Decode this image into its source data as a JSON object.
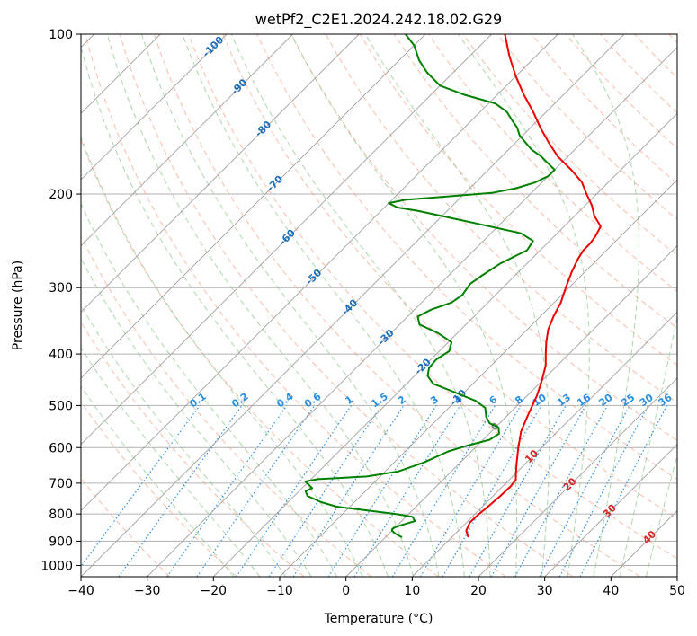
{
  "chart_data": {
    "type": "line",
    "title": "wetPf2_C2E1.2024.242.18.02.G29",
    "xlabel": "Temperature (°C)",
    "ylabel": "Pressure (hPa)",
    "xlim": [
      -40,
      50
    ],
    "ylim": [
      1050,
      100
    ],
    "y_scale": "log",
    "grid": true,
    "x_ticks": [
      -40,
      -30,
      -20,
      -10,
      0,
      10,
      20,
      30,
      40,
      50
    ],
    "y_ticks": [
      100,
      200,
      300,
      400,
      500,
      600,
      700,
      800,
      900,
      1000
    ],
    "colors": {
      "temperature": "#ee0000",
      "dewpoint": "#008000",
      "isotherm": "#a0a0a0",
      "dry_adiabat": "#f4a58c",
      "moist_adiabat": "#90c890",
      "mixing_ratio": "#2a8fe0",
      "isotherm_label": "#1f6fb8",
      "isotherm_label_warm": "#d62728",
      "isotherm_label_zero": "#808080"
    },
    "isotherm_labels": [
      "-100",
      "-90",
      "-80",
      "-70",
      "-60",
      "-50",
      "-40",
      "-30",
      "-20",
      "-10",
      "0",
      "10",
      "20",
      "30",
      "40"
    ],
    "mixing_ratio_labels": [
      "0.1",
      "0.2",
      "0.4",
      "0.6",
      "1",
      "1.5",
      "2",
      "3",
      "4",
      "6",
      "8",
      "10",
      "13",
      "16",
      "20",
      "25",
      "30",
      "36"
    ],
    "series": [
      {
        "key": "temperature",
        "points": [
          [
            885,
            12.5
          ],
          [
            860,
            11.2
          ],
          [
            830,
            10.5
          ],
          [
            800,
            10.6
          ],
          [
            770,
            10.9
          ],
          [
            740,
            11.1
          ],
          [
            710,
            11.2
          ],
          [
            690,
            11.0
          ],
          [
            670,
            10.0
          ],
          [
            640,
            8.5
          ],
          [
            600,
            6.5
          ],
          [
            560,
            4.5
          ],
          [
            520,
            3.0
          ],
          [
            480,
            1.5
          ],
          [
            450,
            0.0
          ],
          [
            420,
            -1.8
          ],
          [
            400,
            -3.5
          ],
          [
            380,
            -5.2
          ],
          [
            360,
            -6.8
          ],
          [
            340,
            -8.0
          ],
          [
            320,
            -9.0
          ],
          [
            300,
            -10.5
          ],
          [
            280,
            -12.0
          ],
          [
            265,
            -13.0
          ],
          [
            255,
            -13.5
          ],
          [
            248,
            -13.5
          ],
          [
            240,
            -13.8
          ],
          [
            230,
            -14.5
          ],
          [
            220,
            -17.0
          ],
          [
            210,
            -19.0
          ],
          [
            200,
            -21.5
          ],
          [
            190,
            -24.0
          ],
          [
            180,
            -27.5
          ],
          [
            170,
            -31.5
          ],
          [
            160,
            -35.0
          ],
          [
            150,
            -38.5
          ],
          [
            140,
            -42.0
          ],
          [
            130,
            -46.0
          ],
          [
            120,
            -50.0
          ],
          [
            110,
            -54.0
          ],
          [
            100,
            -58.0
          ]
        ]
      },
      {
        "key": "dewpoint",
        "points": [
          [
            885,
            2.5
          ],
          [
            870,
            0.8
          ],
          [
            860,
            0.0
          ],
          [
            855,
            -0.2
          ],
          [
            850,
            -0.2
          ],
          [
            840,
            0.5
          ],
          [
            825,
            2.0
          ],
          [
            810,
            1.0
          ],
          [
            800,
            -2.0
          ],
          [
            790,
            -6.0
          ],
          [
            775,
            -12.0
          ],
          [
            760,
            -15.0
          ],
          [
            740,
            -18.0
          ],
          [
            725,
            -19.0
          ],
          [
            715,
            -18.5
          ],
          [
            705,
            -19.5
          ],
          [
            695,
            -20.5
          ],
          [
            688,
            -19.0
          ],
          [
            680,
            -12.0
          ],
          [
            665,
            -8.0
          ],
          [
            650,
            -6.5
          ],
          [
            640,
            -5.5
          ],
          [
            625,
            -4.5
          ],
          [
            610,
            -3.5
          ],
          [
            595,
            -1.5
          ],
          [
            580,
            1.0
          ],
          [
            565,
            1.5
          ],
          [
            550,
            0.5
          ],
          [
            540,
            -1.5
          ],
          [
            525,
            -3.0
          ],
          [
            505,
            -4.5
          ],
          [
            490,
            -7.0
          ],
          [
            470,
            -12.0
          ],
          [
            455,
            -16.0
          ],
          [
            440,
            -18.0
          ],
          [
            425,
            -19.0
          ],
          [
            410,
            -19.2
          ],
          [
            395,
            -18.5
          ],
          [
            380,
            -19.5
          ],
          [
            365,
            -23.0
          ],
          [
            352,
            -27.0
          ],
          [
            340,
            -28.5
          ],
          [
            330,
            -27.5
          ],
          [
            320,
            -25.5
          ],
          [
            310,
            -25.0
          ],
          [
            295,
            -25.5
          ],
          [
            285,
            -25.0
          ],
          [
            270,
            -24.0
          ],
          [
            255,
            -22.0
          ],
          [
            245,
            -22.5
          ],
          [
            237,
            -25.5
          ],
          [
            228,
            -33.0
          ],
          [
            220,
            -40.0
          ],
          [
            215,
            -44.5
          ],
          [
            212,
            -48.0
          ],
          [
            208,
            -50.0
          ],
          [
            205,
            -48.0
          ],
          [
            202,
            -42.0
          ],
          [
            199,
            -36.0
          ],
          [
            195,
            -33.0
          ],
          [
            190,
            -31.0
          ],
          [
            185,
            -30.0
          ],
          [
            180,
            -30.0
          ],
          [
            175,
            -32.0
          ],
          [
            170,
            -34.0
          ],
          [
            165,
            -36.5
          ],
          [
            160,
            -38.5
          ],
          [
            155,
            -40.5
          ],
          [
            150,
            -42.0
          ],
          [
            145,
            -44.0
          ],
          [
            140,
            -46.0
          ],
          [
            135,
            -49.0
          ],
          [
            130,
            -55.0
          ],
          [
            125,
            -60.0
          ],
          [
            118,
            -64.0
          ],
          [
            112,
            -67.0
          ],
          [
            105,
            -70.0
          ],
          [
            100,
            -73.0
          ]
        ]
      }
    ]
  }
}
